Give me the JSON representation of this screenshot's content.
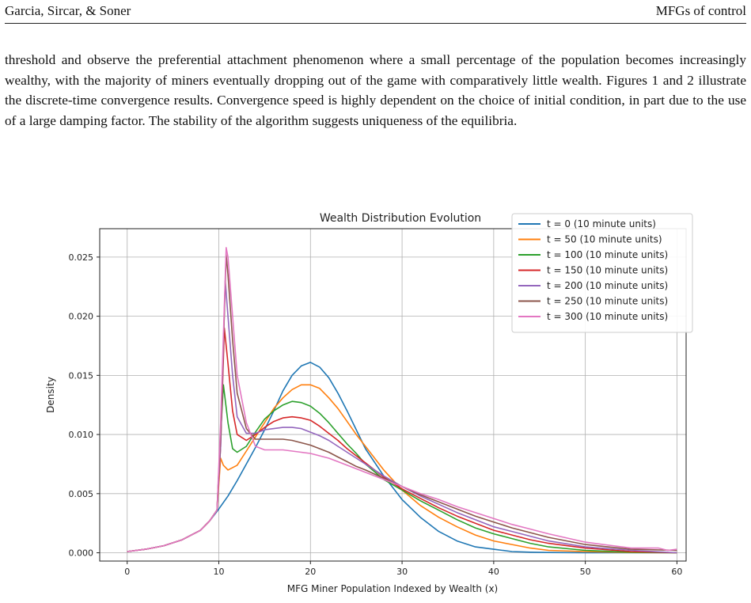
{
  "header": {
    "authors": "Garcia, Sircar, & Soner",
    "short_title": "MFGs of control"
  },
  "body": {
    "paragraph": "threshold and observe the preferential attachment phenomenon where a small percentage of the population becomes increasingly wealthy, with the majority of miners eventually dropping out of the game with comparatively little wealth. Figures 1 and 2 illustrate the discrete-time convergence results. Convergence speed is highly dependent on the choice of initial condition, in part due to the use of a large damping factor. The stability of the algorithm suggests uniqueness of the equilibria."
  },
  "chart_data": {
    "type": "line",
    "title": "Wealth Distribution Evolution",
    "xlabel": "MFG Miner Population Indexed by Wealth (x)",
    "ylabel": "Density",
    "xlim": [
      -3,
      61
    ],
    "ylim": [
      -0.0007,
      0.0274
    ],
    "xticks": [
      0,
      10,
      20,
      30,
      40,
      50,
      60
    ],
    "yticks": [
      0.0,
      0.005,
      0.01,
      0.015,
      0.02,
      0.025
    ],
    "ytick_labels": [
      "0.000",
      "0.005",
      "0.010",
      "0.015",
      "0.020",
      "0.025"
    ],
    "grid": true,
    "legend_position": "top-right",
    "series": [
      {
        "name": "t = 0 (10 minute units)",
        "color": "#1f77b4",
        "x": [
          0,
          2,
          4,
          6,
          8,
          9,
          10,
          11,
          12,
          13,
          14,
          15,
          16,
          17,
          18,
          19,
          20,
          21,
          22,
          23,
          24,
          25,
          26,
          28,
          30,
          32,
          34,
          36,
          38,
          40,
          42,
          44,
          46,
          50,
          55,
          60
        ],
        "y": [
          0.0001,
          0.0003,
          0.0006,
          0.0011,
          0.0019,
          0.0027,
          0.0037,
          0.0048,
          0.0061,
          0.0075,
          0.0089,
          0.0104,
          0.012,
          0.0137,
          0.015,
          0.0158,
          0.0161,
          0.0157,
          0.0148,
          0.0135,
          0.012,
          0.0104,
          0.0088,
          0.0065,
          0.0045,
          0.003,
          0.0018,
          0.001,
          0.0005,
          0.0003,
          0.0001,
          5e-05,
          2e-05,
          0.0,
          0.0,
          0.0
        ]
      },
      {
        "name": "t = 50 (10 minute units)",
        "color": "#ff7f0e",
        "x": [
          0,
          2,
          4,
          6,
          8,
          9,
          9.8,
          10.2,
          10.5,
          11,
          12,
          13,
          14,
          15,
          16,
          17,
          18,
          19,
          20,
          21,
          22,
          23,
          24,
          25,
          26,
          28,
          30,
          32,
          34,
          36,
          38,
          40,
          42,
          44,
          46,
          50,
          55,
          60
        ],
        "y": [
          0.0001,
          0.0003,
          0.0006,
          0.0011,
          0.0019,
          0.0027,
          0.0036,
          0.008,
          0.0074,
          0.007,
          0.0074,
          0.0086,
          0.0098,
          0.011,
          0.0122,
          0.0131,
          0.0138,
          0.0142,
          0.0142,
          0.0139,
          0.0131,
          0.0122,
          0.0111,
          0.01,
          0.009,
          0.007,
          0.0053,
          0.004,
          0.003,
          0.0022,
          0.0015,
          0.001,
          0.0007,
          0.0004,
          0.0002,
          0.0001,
          2e-05,
          0.0
        ]
      },
      {
        "name": "t = 100 (10 minute units)",
        "color": "#2ca02c",
        "x": [
          0,
          2,
          4,
          6,
          8,
          9,
          9.8,
          10.2,
          10.5,
          11,
          11.5,
          12,
          13,
          14,
          15,
          16,
          17,
          18,
          19,
          20,
          21,
          22,
          23,
          24,
          25,
          26,
          28,
          30,
          32,
          34,
          36,
          38,
          40,
          42,
          44,
          46,
          50,
          55,
          60
        ],
        "y": [
          0.0001,
          0.0003,
          0.0006,
          0.0011,
          0.0019,
          0.0027,
          0.0036,
          0.01,
          0.0142,
          0.011,
          0.0088,
          0.0085,
          0.009,
          0.0102,
          0.0113,
          0.012,
          0.0125,
          0.0128,
          0.0127,
          0.0124,
          0.0118,
          0.011,
          0.0101,
          0.0092,
          0.0084,
          0.0075,
          0.0062,
          0.0053,
          0.0044,
          0.0036,
          0.0028,
          0.0021,
          0.0016,
          0.0012,
          0.0008,
          0.0005,
          0.0002,
          5e-05,
          0.0
        ]
      },
      {
        "name": "t = 150 (10 minute units)",
        "color": "#d62728",
        "x": [
          0,
          2,
          4,
          6,
          8,
          9,
          9.8,
          10.2,
          10.6,
          11,
          11.5,
          12,
          13,
          14,
          15,
          16,
          17,
          18,
          19,
          20,
          21,
          22,
          23,
          24,
          25,
          26,
          28,
          30,
          32,
          34,
          36,
          38,
          40,
          42,
          44,
          46,
          50,
          55,
          60
        ],
        "y": [
          0.0001,
          0.0003,
          0.0006,
          0.0011,
          0.0019,
          0.0027,
          0.0036,
          0.009,
          0.019,
          0.016,
          0.012,
          0.01,
          0.0095,
          0.01,
          0.0106,
          0.0111,
          0.0114,
          0.0115,
          0.0114,
          0.0112,
          0.0107,
          0.0101,
          0.0095,
          0.0088,
          0.0082,
          0.0076,
          0.0064,
          0.0054,
          0.0046,
          0.0038,
          0.0031,
          0.0025,
          0.0019,
          0.0015,
          0.0011,
          0.0008,
          0.0004,
          0.0001,
          0.0
        ]
      },
      {
        "name": "t = 200 (10 minute units)",
        "color": "#9467bd",
        "x": [
          0,
          2,
          4,
          6,
          8,
          9,
          9.8,
          10.2,
          10.7,
          11,
          11.5,
          12,
          13,
          14,
          15,
          16,
          17,
          18,
          19,
          20,
          21,
          22,
          23,
          24,
          25,
          26,
          28,
          30,
          32,
          34,
          36,
          38,
          40,
          42,
          44,
          46,
          50,
          55,
          60
        ],
        "y": [
          0.0001,
          0.0003,
          0.0006,
          0.0011,
          0.0019,
          0.0027,
          0.0036,
          0.009,
          0.023,
          0.02,
          0.015,
          0.0115,
          0.0101,
          0.0101,
          0.0104,
          0.0105,
          0.0106,
          0.0106,
          0.0105,
          0.0102,
          0.0099,
          0.0095,
          0.009,
          0.0085,
          0.008,
          0.0075,
          0.0065,
          0.0056,
          0.0048,
          0.0041,
          0.0034,
          0.0028,
          0.0022,
          0.0018,
          0.0014,
          0.001,
          0.0005,
          0.0002,
          0.0
        ]
      },
      {
        "name": "t = 250 (10 minute units)",
        "color": "#8c564b",
        "x": [
          0,
          2,
          4,
          6,
          8,
          9,
          9.8,
          10.2,
          10.8,
          11,
          11.5,
          12,
          13,
          14,
          15,
          16,
          17,
          18,
          19,
          20,
          21,
          22,
          23,
          24,
          25,
          26,
          28,
          30,
          32,
          34,
          36,
          38,
          40,
          42,
          44,
          46,
          50,
          55,
          60
        ],
        "y": [
          0.0001,
          0.0003,
          0.0006,
          0.0011,
          0.0019,
          0.0027,
          0.0036,
          0.01,
          0.0252,
          0.0235,
          0.018,
          0.0135,
          0.0105,
          0.0096,
          0.0096,
          0.0096,
          0.0096,
          0.0095,
          0.0093,
          0.0091,
          0.0088,
          0.0085,
          0.0081,
          0.0077,
          0.0073,
          0.007,
          0.0063,
          0.0056,
          0.0049,
          0.0043,
          0.0037,
          0.0031,
          0.0026,
          0.0021,
          0.0017,
          0.0013,
          0.0007,
          0.0003,
          0.0002
        ]
      },
      {
        "name": "t = 300 (10 minute units)",
        "color": "#e377c2",
        "x": [
          0,
          2,
          4,
          6,
          8,
          9,
          9.8,
          10.2,
          10.8,
          11,
          11.5,
          12,
          13,
          14,
          15,
          16,
          17,
          18,
          19,
          20,
          21,
          22,
          23,
          24,
          25,
          26,
          28,
          30,
          32,
          34,
          36,
          38,
          40,
          42,
          44,
          46,
          50,
          55,
          58,
          59,
          60
        ],
        "y": [
          0.0001,
          0.0003,
          0.0006,
          0.0011,
          0.0019,
          0.0027,
          0.0036,
          0.011,
          0.0258,
          0.025,
          0.02,
          0.015,
          0.011,
          0.009,
          0.0087,
          0.0087,
          0.0087,
          0.0086,
          0.0085,
          0.0084,
          0.0082,
          0.008,
          0.0077,
          0.0074,
          0.0071,
          0.0068,
          0.0062,
          0.0056,
          0.005,
          0.0045,
          0.0039,
          0.0034,
          0.0029,
          0.0024,
          0.002,
          0.0016,
          0.0009,
          0.0004,
          0.0004,
          0.0002,
          0.0003
        ]
      }
    ]
  }
}
